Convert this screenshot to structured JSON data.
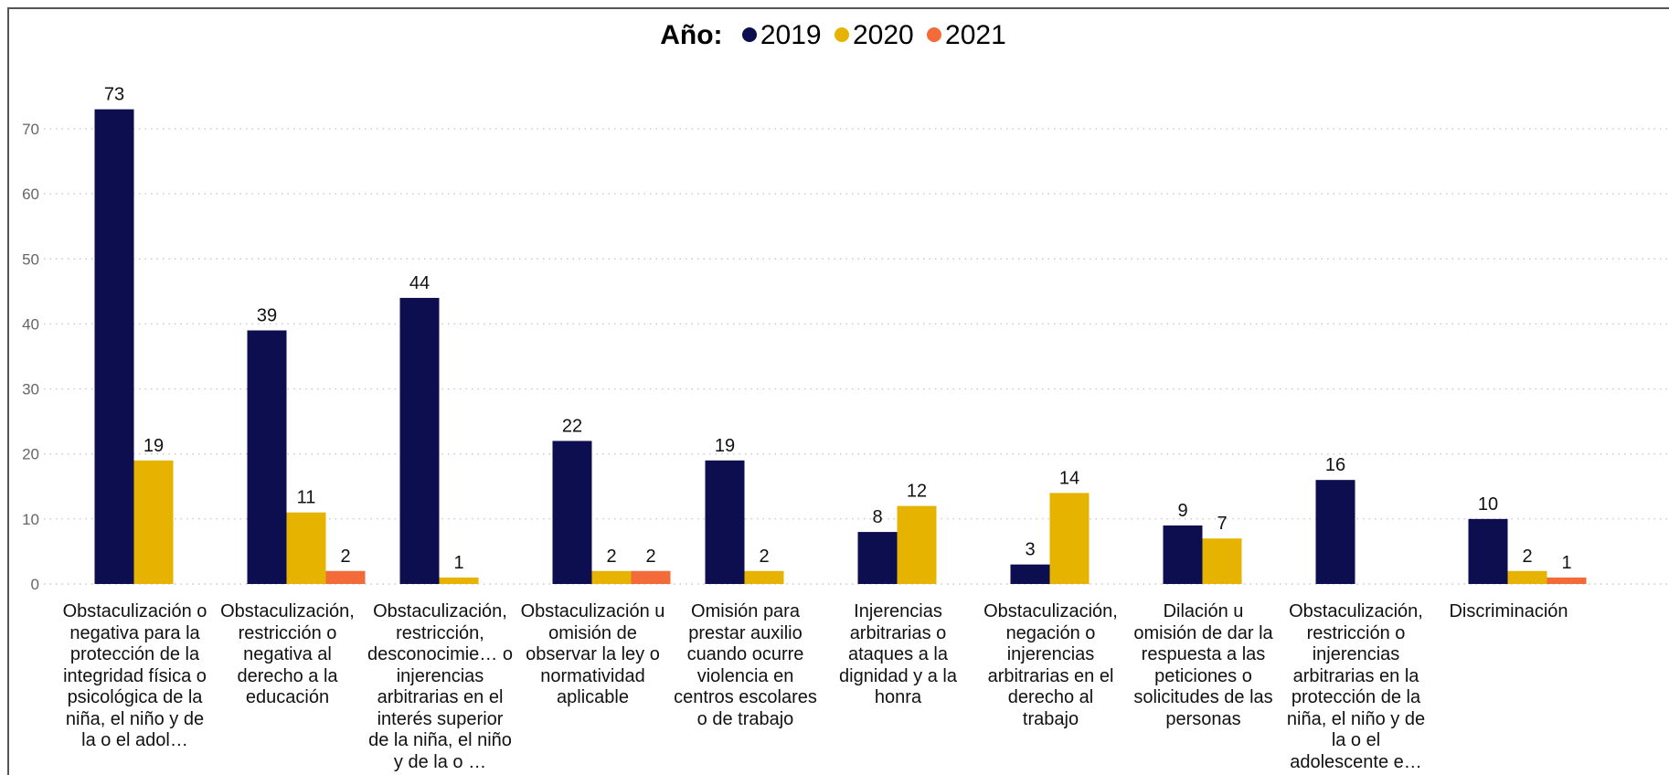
{
  "chart_data": {
    "type": "bar",
    "legend_title": "Año:",
    "legend_position": "top-center",
    "categories": [
      "Obstaculización o negativa para la protección de la integridad física o psicológica de la niña, el niño y de la o el adol…",
      "Obstaculización, restricción o negativa al derecho a la educación",
      "Obstaculización, restricción, desconocimie… o injerencias arbitrarias en el interés superior de la niña, el niño y de la o …",
      "Obstaculización u omisión de observar la ley o normatividad aplicable",
      "Omisión para prestar auxilio cuando ocurre violencia en centros escolares o de trabajo",
      "Injerencias arbitrarias o ataques a la dignidad y a la honra",
      "Obstaculización, negación o injerencias arbitrarias en el derecho al trabajo",
      "Dilación u omisión de dar la respuesta a las peticiones o solicitudes de las personas",
      "Obstaculización, restricción o injerencias arbitrarias en la protección de la niña, el niño y de la o el adolescente e…",
      "Discriminación"
    ],
    "series": [
      {
        "name": "2019",
        "color": "#0d0e4f",
        "values": [
          73,
          39,
          44,
          22,
          19,
          8,
          3,
          9,
          16,
          10
        ]
      },
      {
        "name": "2020",
        "color": "#e6b400",
        "values": [
          19,
          11,
          1,
          2,
          2,
          12,
          14,
          7,
          null,
          2
        ]
      },
      {
        "name": "2021",
        "color": "#f26b38",
        "values": [
          null,
          2,
          null,
          2,
          null,
          null,
          null,
          null,
          null,
          1
        ]
      }
    ],
    "ylim": [
      0,
      80
    ],
    "yticks": [
      0,
      10,
      20,
      30,
      40,
      50,
      60,
      70
    ],
    "grid": true,
    "xlabel": "",
    "ylabel": ""
  }
}
